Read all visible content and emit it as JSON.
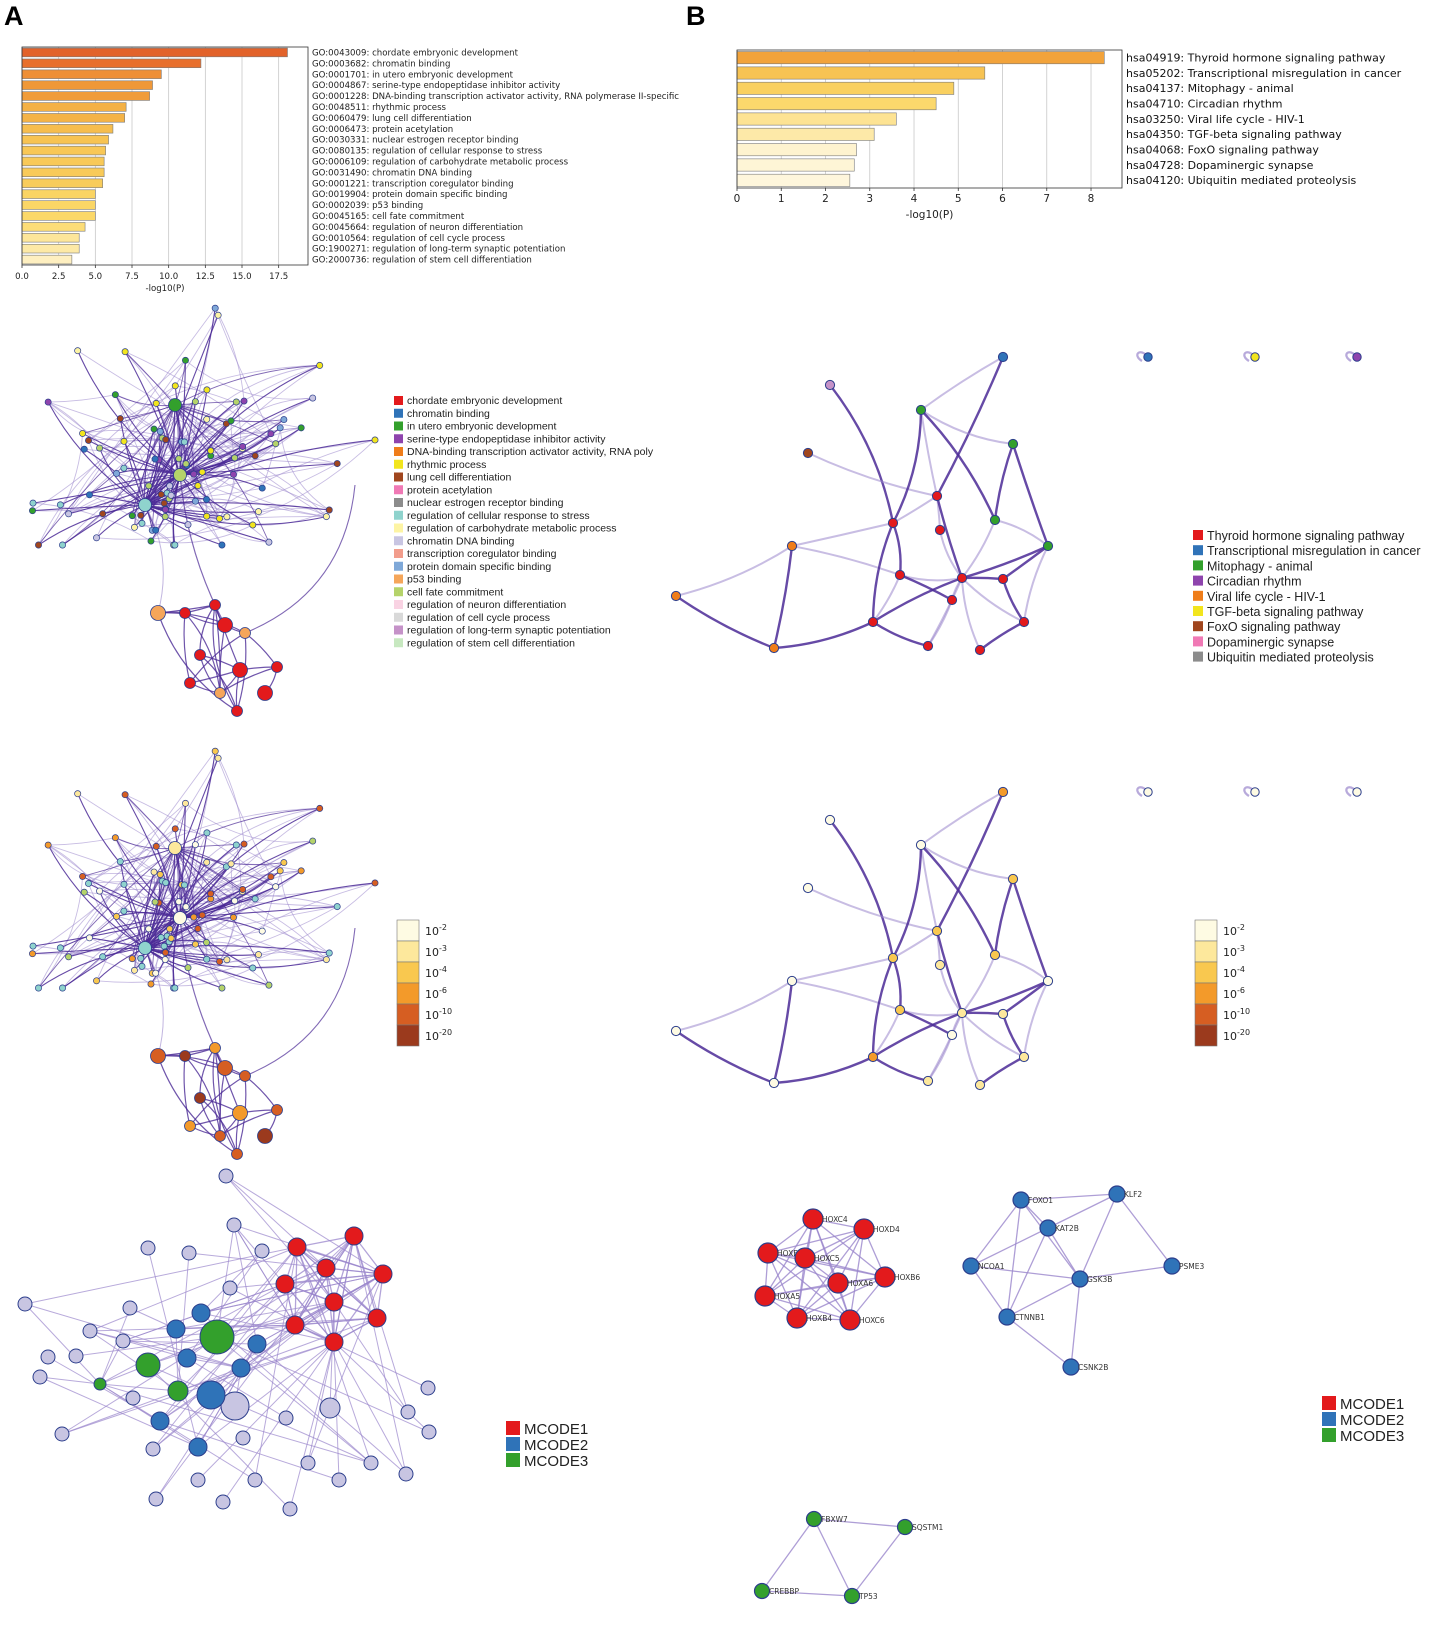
{
  "panels": {
    "left_label": "A",
    "right_label": "B"
  },
  "chart_data": [
    {
      "type": "bar",
      "orientation": "horizontal",
      "categories": [
        "GO:0043009: chordate embryonic development",
        "GO:0003682: chromatin binding",
        "GO:0001701: in utero embryonic development",
        "GO:0004867: serine-type endopeptidase inhibitor activity",
        "GO:0001228: DNA-binding transcription activator activity, RNA polymerase II-specific",
        "GO:0048511: rhythmic process",
        "GO:0060479: lung cell differentiation",
        "GO:0006473: protein acetylation",
        "GO:0030331: nuclear estrogen receptor binding",
        "GO:0080135: regulation of cellular response to stress",
        "GO:0006109: regulation of carbohydrate metabolic process",
        "GO:0031490: chromatin DNA binding",
        "GO:0001221: transcription coregulator binding",
        "GO:0019904: protein domain specific binding",
        "GO:0002039: p53 binding",
        "GO:0045165: cell fate commitment",
        "GO:0045664: regulation of neuron differentiation",
        "GO:0010564: regulation of cell cycle process",
        "GO:1900271: regulation of long-term synaptic potentiation",
        "GO:2000736: regulation of stem cell differentiation"
      ],
      "values": [
        18.1,
        12.2,
        9.5,
        8.9,
        8.7,
        7.1,
        7.0,
        6.2,
        5.9,
        5.7,
        5.6,
        5.6,
        5.5,
        5.0,
        5.0,
        5.0,
        4.3,
        3.9,
        3.9,
        3.4
      ],
      "bar_colors": [
        "#e2622a",
        "#e86f2c",
        "#ee8f36",
        "#ef9838",
        "#f09c3a",
        "#f4b145",
        "#f4b347",
        "#f6bd4e",
        "#f7c352",
        "#f8c756",
        "#f8c958",
        "#f8ca59",
        "#f8cc5b",
        "#fad463",
        "#fad666",
        "#fbd869",
        "#fcdd78",
        "#fde69a",
        "#fde9a6",
        "#feefc0"
      ],
      "xlabel": "-log10(P)",
      "xlim": [
        0,
        19.5
      ],
      "xticks": [
        "0.0",
        "2.5",
        "5.0",
        "7.5",
        "10.0",
        "12.5",
        "15.0",
        "17.5"
      ],
      "grid": "vertical"
    },
    {
      "type": "bar",
      "orientation": "horizontal",
      "categories": [
        "hsa04919: Thyroid hormone signaling pathway",
        "hsa05202: Transcriptional misregulation in cancer",
        "hsa04137: Mitophagy - animal",
        "hsa04710: Circadian rhythm",
        "hsa03250: Viral life cycle - HIV-1",
        "hsa04350: TGF-beta signaling pathway",
        "hsa04068: FoxO signaling pathway",
        "hsa04728: Dopaminergic synapse",
        "hsa04120: Ubiquitin mediated proteolysis"
      ],
      "values": [
        8.3,
        5.6,
        4.9,
        4.5,
        3.6,
        3.1,
        2.7,
        2.65,
        2.55
      ],
      "bar_colors": [
        "#f2a33b",
        "#f7c353",
        "#f9d060",
        "#fbd86c",
        "#fde393",
        "#fde9a8",
        "#fef3cf",
        "#fef5d6",
        "#fef6dc"
      ],
      "xlabel": "-log10(P)",
      "xlim": [
        0,
        8.7
      ],
      "xticks": [
        "0",
        "1",
        "2",
        "3",
        "4",
        "5",
        "6",
        "7",
        "8"
      ],
      "grid": "vertical"
    }
  ],
  "legends": {
    "go_clusters": [
      {
        "label": "chordate embryonic development",
        "color": "#e31a1c"
      },
      {
        "label": "chromatin binding",
        "color": "#2f73b8"
      },
      {
        "label": "in utero embryonic development",
        "color": "#33a02c"
      },
      {
        "label": "serine-type endopeptidase inhibitor activity",
        "color": "#8e44ad"
      },
      {
        "label": "DNA-binding transcription activator activity, RNA poly",
        "color": "#ef7d1a"
      },
      {
        "label": "rhythmic process",
        "color": "#f2e51d"
      },
      {
        "label": "lung cell differentiation",
        "color": "#a0461e"
      },
      {
        "label": "protein acetylation",
        "color": "#f079b5"
      },
      {
        "label": "nuclear estrogen receptor binding",
        "color": "#8c8c8c"
      },
      {
        "label": "regulation of cellular response to stress",
        "color": "#8fd3cd"
      },
      {
        "label": "regulation of carbohydrate metabolic process",
        "color": "#fdf4a4"
      },
      {
        "label": "chromatin DNA binding",
        "color": "#c8c5e2"
      },
      {
        "label": "transcription coregulator binding",
        "color": "#f29d8c"
      },
      {
        "label": "protein domain specific binding",
        "color": "#7fa8d8"
      },
      {
        "label": "p53 binding",
        "color": "#f5a65a"
      },
      {
        "label": "cell fate commitment",
        "color": "#b5d36a"
      },
      {
        "label": "regulation of neuron differentiation",
        "color": "#f9d3e3"
      },
      {
        "label": "regulation of cell cycle process",
        "color": "#d9d9d9"
      },
      {
        "label": "regulation of long-term synaptic potentiation",
        "color": "#c592c8"
      },
      {
        "label": "regulation of stem cell differentiation",
        "color": "#c7e8c0"
      }
    ],
    "kegg_clusters": [
      {
        "label": "Thyroid hormone signaling pathway",
        "color": "#e31a1c"
      },
      {
        "label": "Transcriptional misregulation in cancer",
        "color": "#2f73b8"
      },
      {
        "label": "Mitophagy - animal",
        "color": "#33a02c"
      },
      {
        "label": "Circadian rhythm",
        "color": "#8e44ad"
      },
      {
        "label": "Viral life cycle - HIV-1",
        "color": "#ef7d1a"
      },
      {
        "label": "TGF-beta signaling pathway",
        "color": "#f2e51d"
      },
      {
        "label": "FoxO signaling pathway",
        "color": "#a0461e"
      },
      {
        "label": "Dopaminergic synapse",
        "color": "#f079b5"
      },
      {
        "label": "Ubiquitin mediated proteolysis",
        "color": "#8c8c8c"
      }
    ],
    "pvalue_scale": [
      {
        "base": "10",
        "exp": "-2",
        "color": "#fefbe3"
      },
      {
        "base": "10",
        "exp": "-3",
        "color": "#fde89c"
      },
      {
        "base": "10",
        "exp": "-4",
        "color": "#f9c84f"
      },
      {
        "base": "10",
        "exp": "-6",
        "color": "#f39a2a"
      },
      {
        "base": "10",
        "exp": "-10",
        "color": "#d65e22"
      },
      {
        "base": "10",
        "exp": "-20",
        "color": "#9b3a1d"
      }
    ],
    "mcode": [
      {
        "label": "MCODE1",
        "color": "#e31a1c"
      },
      {
        "label": "MCODE2",
        "color": "#2f73b8"
      },
      {
        "label": "MCODE3",
        "color": "#33a02c"
      }
    ]
  },
  "mcode_genes": {
    "mcode1": [
      "HOXC4",
      "HOXD4",
      "HOXB5",
      "HOXC5",
      "HOXB6",
      "HOXA5",
      "HOXA6",
      "HOXB4",
      "HOXC6"
    ],
    "mcode2": [
      "FOXO1",
      "KLF2",
      "KAT2B",
      "NCOA1",
      "PSME3",
      "GSK3B",
      "CTNNB1",
      "CSNK2B"
    ],
    "mcode3": [
      "FBXW7",
      "SQSTM1",
      "CREBBP",
      "TP53"
    ]
  },
  "colors": {
    "edge_dark": "#4b2a96",
    "edge_light": "#9a86cc",
    "node_stroke": "#2c3e8c"
  }
}
